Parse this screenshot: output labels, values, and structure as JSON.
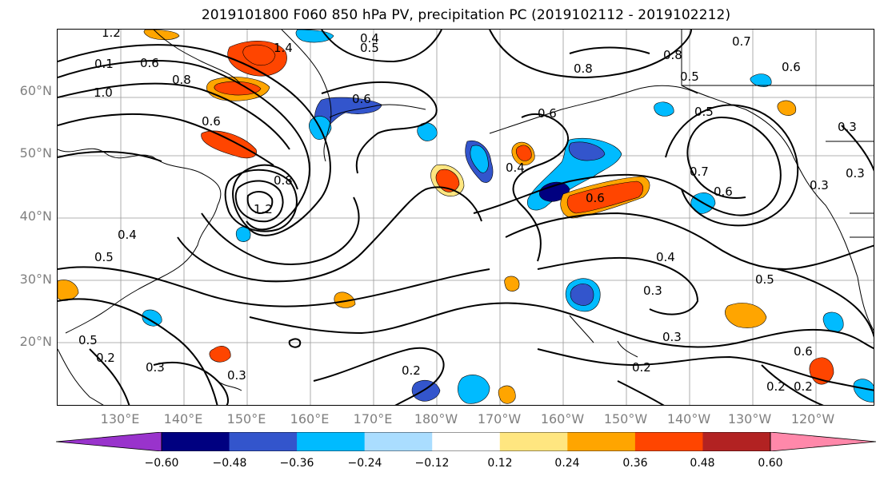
{
  "title": "2019101800 F060 850 hPa PV, precipitation PC (2019102112 - 2019102212)",
  "lat_labels": [
    "60°N",
    "50°N",
    "40°N",
    "30°N",
    "20°N"
  ],
  "lon_labels": [
    "130°E",
    "140°E",
    "150°E",
    "160°E",
    "170°E",
    "180°W",
    "170°W",
    "160°W",
    "150°W",
    "140°W",
    "130°W",
    "120°W"
  ],
  "colorbar": {
    "colors": [
      "#9933cc",
      "#000080",
      "#3355cc",
      "#00bbff",
      "#aaddff",
      "#ffffff",
      "#ffe680",
      "#ffa500",
      "#ff4500",
      "#b22222",
      "#ff88aa"
    ],
    "tick_labels": [
      "−0.60",
      "−0.48",
      "−0.36",
      "−0.24",
      "−0.12",
      "0.12",
      "0.24",
      "0.36",
      "0.48",
      "0.60"
    ]
  },
  "contour_labels": [
    "1.2",
    "0.4",
    "0.5",
    "0.1",
    "0.6",
    "0.8",
    "1.0",
    "1.4",
    "0.6",
    "0.8",
    "0.7",
    "0.6",
    "0.8",
    "0.5",
    "0.5",
    "0.6",
    "0.3",
    "0.6",
    "0.4",
    "0.6",
    "0.7",
    "0.6",
    "0.3",
    "0.3",
    "1.2",
    "0.8",
    "0.4",
    "0.5",
    "0.4",
    "0.3",
    "0.5",
    "0.2",
    "0.3",
    "0.3",
    "0.2",
    "0.3",
    "0.2",
    "0.5",
    "0.6",
    "0.2",
    "0.2"
  ]
}
